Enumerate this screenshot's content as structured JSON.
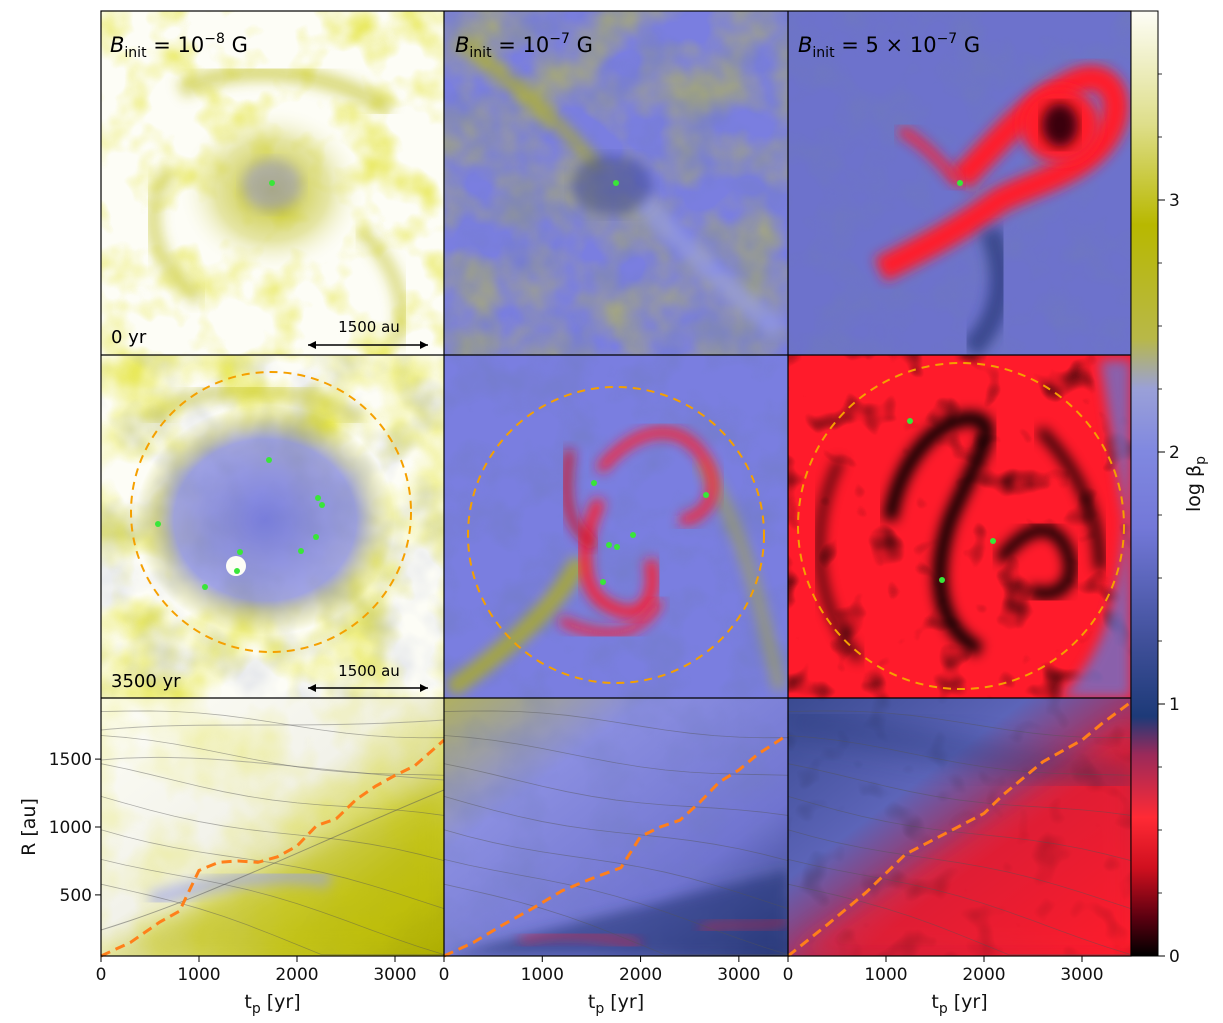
{
  "figure": {
    "columns": [
      {
        "title_B": "B",
        "title_sub": "init",
        "title_rest": " = 10",
        "title_sup": "−8",
        "title_unit": " G"
      },
      {
        "title_B": "B",
        "title_sub": "init",
        "title_rest": " = 10",
        "title_sup": "−7",
        "title_unit": " G"
      },
      {
        "title_B": "B",
        "title_sub": "init",
        "title_rest": " = 5 × 10",
        "title_sup": "−7",
        "title_unit": " G"
      }
    ],
    "time_labels": [
      "0 yr",
      "3500 yr"
    ],
    "scalebar_label": "1500 au",
    "colors": {
      "low": "#000000",
      "red": "#ff1b2b",
      "navy": "#283878",
      "slate": "#7a7ee0",
      "olive": "#b8b800",
      "cream": "#fdfdf6",
      "dashed_circle": "#f5a000",
      "dashed_line": "#ff7f1a",
      "sink": "#39e639"
    }
  },
  "chart_data": [
    {
      "type": "heatmap",
      "description_key": "bottom-row radius-time panels",
      "xlabel": "t",
      "xlabel_sub": "p",
      "xlabel_unit": " [yr]",
      "ylabel": "R [au]",
      "xlim": [
        0,
        3500
      ],
      "ylim": [
        50,
        1950
      ],
      "xticks": [
        0,
        1000,
        2000,
        3000
      ],
      "yticks": [
        500,
        1000,
        1500
      ],
      "dashed_curves": [
        {
          "x": [
            0,
            300,
            600,
            800,
            1000,
            1200,
            1400,
            1600,
            1800,
            2000,
            2200,
            2400,
            2600,
            2800,
            3000,
            3200,
            3500
          ],
          "y": [
            50,
            150,
            300,
            380,
            680,
            740,
            750,
            740,
            780,
            860,
            1010,
            1060,
            1200,
            1300,
            1380,
            1450,
            1640
          ]
        },
        {
          "x": [
            0,
            300,
            600,
            900,
            1200,
            1500,
            1800,
            2000,
            2200,
            2400,
            2600,
            2800,
            3000,
            3200,
            3500
          ],
          "y": [
            50,
            150,
            280,
            400,
            530,
            620,
            700,
            930,
            1000,
            1050,
            1180,
            1330,
            1420,
            1540,
            1680
          ]
        },
        {
          "x": [
            0,
            400,
            800,
            1200,
            1600,
            2000,
            2200,
            2400,
            2600,
            2800,
            3000,
            3200,
            3500
          ],
          "y": [
            50,
            280,
            520,
            800,
            950,
            1100,
            1240,
            1360,
            1480,
            1560,
            1640,
            1760,
            1920
          ]
        }
      ]
    },
    {
      "type": "heatmap",
      "description_key": "colorbar",
      "ylabel": "log β",
      "ylabel_sub": "p",
      "ylim": [
        0,
        3.75
      ],
      "ticks": [
        0,
        1,
        2,
        3
      ],
      "stops": [
        {
          "v": 0.0,
          "color": "#000000"
        },
        {
          "v": 0.15,
          "color": "#5a0010"
        },
        {
          "v": 0.35,
          "color": "#d0101f"
        },
        {
          "v": 0.55,
          "color": "#ff2a35"
        },
        {
          "v": 0.8,
          "color": "#9a2a5a"
        },
        {
          "v": 0.95,
          "color": "#1d3a78"
        },
        {
          "v": 1.25,
          "color": "#40509a"
        },
        {
          "v": 1.7,
          "color": "#7378d8"
        },
        {
          "v": 2.0,
          "color": "#8088e0"
        },
        {
          "v": 2.25,
          "color": "#9aa0d8"
        },
        {
          "v": 2.45,
          "color": "#b8b848"
        },
        {
          "v": 2.9,
          "color": "#b8b800"
        },
        {
          "v": 3.3,
          "color": "#dede8a"
        },
        {
          "v": 3.75,
          "color": "#fdfdf6"
        }
      ]
    }
  ]
}
